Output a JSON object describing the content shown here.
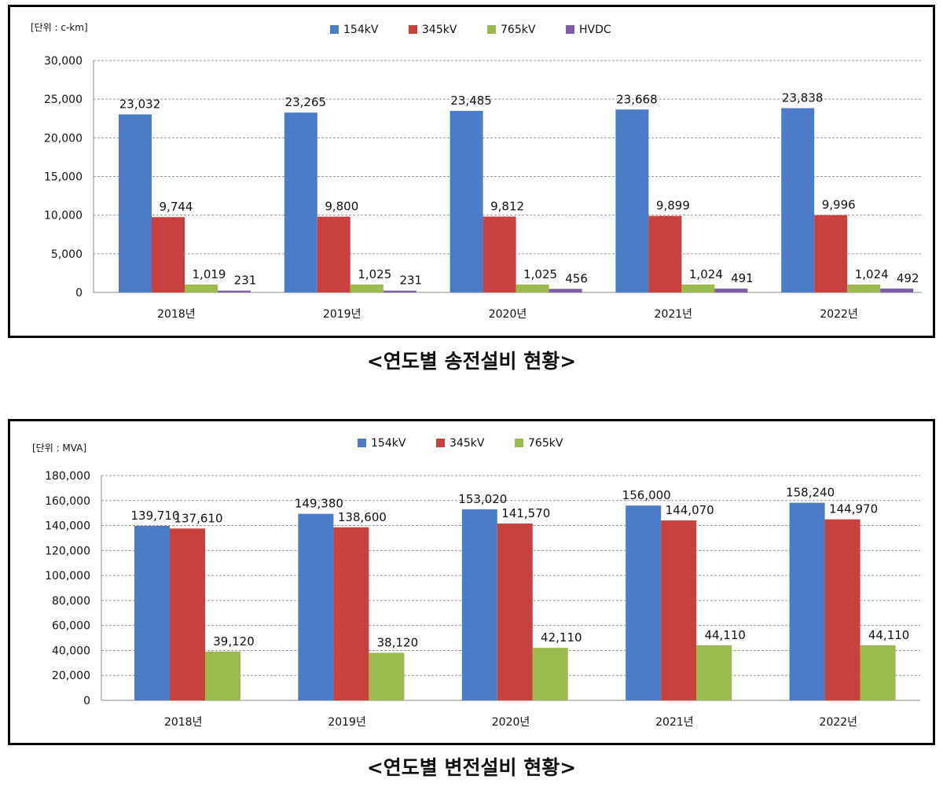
{
  "chart_data": [
    {
      "type": "bar",
      "unit_label": "[단위 : c-km]",
      "caption": "<연도별 송전설비 현황>",
      "categories": [
        "2018년",
        "2019년",
        "2020년",
        "2021년",
        "2022년"
      ],
      "ylim": [
        0,
        30000
      ],
      "yticks": [
        0,
        5000,
        10000,
        15000,
        20000,
        25000,
        30000
      ],
      "ytick_labels": [
        "0",
        "5,000",
        "10,000",
        "15,000",
        "20,000",
        "25,000",
        "30,000"
      ],
      "grid": true,
      "legend_position": "top-center",
      "series": [
        {
          "name": "154kV",
          "color": "#4a7cc7",
          "values": [
            23032,
            23265,
            23485,
            23668,
            23838
          ],
          "labels": [
            "23,032",
            "23,265",
            "23,485",
            "23,668",
            "23,838"
          ]
        },
        {
          "name": "345kV",
          "color": "#c8413f",
          "values": [
            9744,
            9800,
            9812,
            9899,
            9996
          ],
          "labels": [
            "9,744",
            "9,800",
            "9,812",
            "9,899",
            "9,996"
          ]
        },
        {
          "name": "765kV",
          "color": "#9bbb4f",
          "values": [
            1019,
            1025,
            1025,
            1024,
            1024
          ],
          "labels": [
            "1,019",
            "1,025",
            "1,025",
            "1,024",
            "1,024"
          ]
        },
        {
          "name": "HVDC",
          "color": "#7d5ea6",
          "values": [
            231,
            231,
            456,
            491,
            492
          ],
          "labels": [
            "231",
            "231",
            "456",
            "491",
            "492"
          ]
        }
      ]
    },
    {
      "type": "bar",
      "unit_label": "[단위 : MVA]",
      "caption": "<연도별 변전설비 현황>",
      "categories": [
        "2018년",
        "2019년",
        "2020년",
        "2021년",
        "2022년"
      ],
      "ylim": [
        0,
        180000
      ],
      "yticks": [
        0,
        20000,
        40000,
        60000,
        80000,
        100000,
        120000,
        140000,
        160000,
        180000
      ],
      "ytick_labels": [
        "0",
        "20,000",
        "40,000",
        "60,000",
        "80,000",
        "100,000",
        "120,000",
        "140,000",
        "160,000",
        "180,000"
      ],
      "grid": true,
      "legend_position": "top-center",
      "series": [
        {
          "name": "154kV",
          "color": "#4a7cc7",
          "values": [
            139710,
            149380,
            153020,
            156000,
            158240
          ],
          "labels": [
            "139,710",
            "149,380",
            "153,020",
            "156,000",
            "158,240"
          ]
        },
        {
          "name": "345kV",
          "color": "#c8413f",
          "values": [
            137610,
            138600,
            141570,
            144070,
            144970
          ],
          "labels": [
            "137,610",
            "138,600",
            "141,570",
            "144,070",
            "144,970"
          ]
        },
        {
          "name": "765kV",
          "color": "#9bbb4f",
          "values": [
            39120,
            38120,
            42110,
            44110,
            44110
          ],
          "labels": [
            "39,120",
            "38,120",
            "42,110",
            "44,110",
            "44,110"
          ]
        }
      ]
    }
  ]
}
